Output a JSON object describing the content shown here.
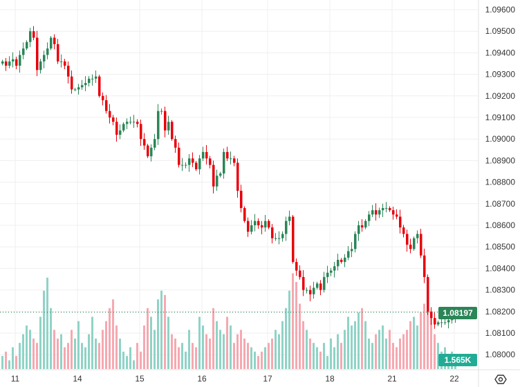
{
  "chart_data": {
    "type": "candlestick",
    "symbol_price_last": "1.08197",
    "volume_last": "1.565K",
    "y_ticks": [
      "1.09600",
      "1.09500",
      "1.09400",
      "1.09300",
      "1.09200",
      "1.09100",
      "1.09000",
      "1.08900",
      "1.08800",
      "1.08700",
      "1.08600",
      "1.08500",
      "1.08400",
      "1.08300",
      "1.08200",
      "1.08100",
      "1.08000"
    ],
    "x_ticks": [
      "11",
      "14",
      "15",
      "16",
      "17",
      "18",
      "21",
      "22"
    ],
    "x_tick_candle_index": [
      2,
      20,
      38,
      56,
      75,
      93,
      111,
      129
    ],
    "ylim": [
      1.0795,
      1.0965
    ],
    "first_open": 1.0935,
    "closes": [
      1.0936,
      1.0934,
      1.0936,
      1.0937,
      1.0934,
      1.0939,
      1.0942,
      1.0945,
      1.095,
      1.0947,
      1.0932,
      1.0936,
      1.0939,
      1.0942,
      1.0947,
      1.0944,
      1.0936,
      1.0936,
      1.0934,
      1.0929,
      1.0923,
      1.0923,
      1.0924,
      1.0925,
      1.0926,
      1.0928,
      1.0928,
      1.0929,
      1.092,
      1.0918,
      1.0913,
      1.091,
      1.0908,
      1.0902,
      1.0904,
      1.0907,
      1.0908,
      1.0908,
      1.0908,
      1.0907,
      1.09,
      1.0897,
      1.0892,
      1.0896,
      1.09,
      1.0913,
      1.0913,
      1.0904,
      1.0908,
      1.09,
      1.0896,
      1.0888,
      1.0888,
      1.0888,
      1.0891,
      1.0889,
      1.0886,
      1.0891,
      1.0894,
      1.0891,
      1.0888,
      1.0878,
      1.0883,
      1.0884,
      1.0894,
      1.0891,
      1.0891,
      1.0889,
      1.0876,
      1.0868,
      1.0862,
      1.0857,
      1.086,
      1.0862,
      1.086,
      1.0859,
      1.0862,
      1.0859,
      1.0854,
      1.0854,
      1.0854,
      1.0856,
      1.0862,
      1.0864,
      1.0843,
      1.0839,
      1.0836,
      1.083,
      1.083,
      1.0828,
      1.0831,
      1.0833,
      1.083,
      1.0836,
      1.0838,
      1.0839,
      1.0841,
      1.0844,
      1.0843,
      1.0845,
      1.0848,
      1.0849,
      1.0856,
      1.086,
      1.0859,
      1.0862,
      1.0865,
      1.0867,
      1.0865,
      1.0867,
      1.0868,
      1.0868,
      1.0867,
      1.0865,
      1.0864,
      1.0859,
      1.0856,
      1.0851,
      1.0849,
      1.0854,
      1.0856,
      1.0846,
      1.0836,
      1.082,
      1.0817,
      1.0814,
      1.0815,
      1.0815,
      1.0815,
      1.0816,
      1.0818,
      1.08197
    ],
    "volumes_k": [
      3,
      4,
      2,
      5,
      3,
      6,
      8,
      10,
      9,
      7,
      6,
      12,
      18,
      21,
      14,
      9,
      7,
      8,
      5,
      6,
      9,
      7,
      11,
      6,
      5,
      8,
      12,
      7,
      6,
      9,
      11,
      14,
      16,
      10,
      7,
      4,
      3,
      5,
      2,
      6,
      4,
      10,
      14,
      12,
      9,
      16,
      18,
      17,
      12,
      8,
      7,
      5,
      6,
      4,
      9,
      6,
      5,
      12,
      10,
      8,
      7,
      14,
      11,
      9,
      8,
      12,
      10,
      6,
      8,
      9,
      7,
      6,
      5,
      4,
      3,
      4,
      5,
      6,
      7,
      9,
      8,
      11,
      14,
      18,
      22,
      20,
      15,
      11,
      9,
      7,
      6,
      5,
      4,
      6,
      3,
      7,
      5,
      8,
      6,
      9,
      12,
      10,
      11,
      13,
      14,
      11,
      7,
      6,
      8,
      9,
      10,
      7,
      9,
      6,
      5,
      7,
      8,
      9,
      11,
      12,
      10,
      13,
      15,
      14,
      12,
      8,
      6,
      4,
      5,
      3,
      4,
      1.565
    ],
    "colors": {
      "up": "#2b8557",
      "down": "#e8000b",
      "vol_up": "#8fd3c6",
      "vol_down": "#f6a8b0",
      "grid": "#efefef",
      "last_line": "#2b8557"
    }
  }
}
